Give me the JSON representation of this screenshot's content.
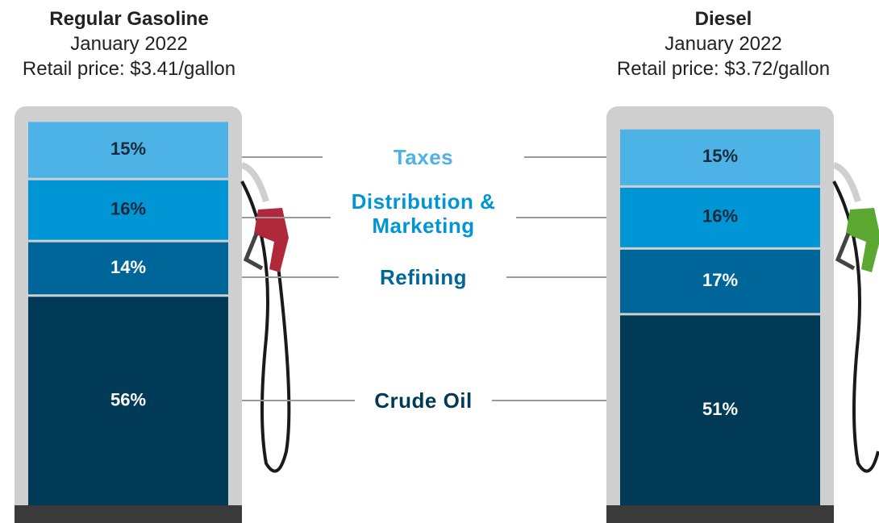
{
  "chart_data": {
    "type": "stacked-bar",
    "categories": [
      "Regular Gasoline",
      "Diesel"
    ],
    "subtitles": [
      "January 2022",
      "January 2022"
    ],
    "notes": [
      "Retail price: $3.41/gallon",
      "Retail price: $3.72/gallon"
    ],
    "series": [
      {
        "name": "Taxes",
        "color": "#4db3e6",
        "values": [
          15,
          15
        ],
        "value_labels": [
          "15%",
          "15%"
        ]
      },
      {
        "name": "Distribution & Marketing",
        "color": "#0096d6",
        "values": [
          16,
          16
        ],
        "value_labels": [
          "16%",
          "16%"
        ]
      },
      {
        "name": "Refining",
        "color": "#006699",
        "values": [
          14,
          17
        ],
        "value_labels": [
          "14%",
          "17%"
        ]
      },
      {
        "name": "Crude Oil",
        "color": "#003a57",
        "values": [
          56,
          51
        ],
        "value_labels": [
          "56%",
          "51%"
        ]
      }
    ]
  }
}
